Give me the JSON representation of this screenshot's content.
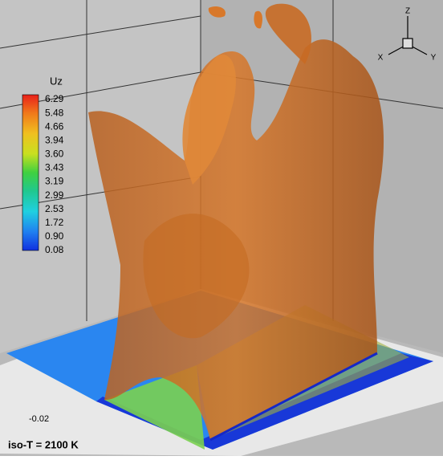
{
  "colorbar": {
    "title": "Uz",
    "labels": [
      "6.29",
      "5.48",
      "4.66",
      "3.94",
      "3.60",
      "3.43",
      "3.19",
      "2.99",
      "2.53",
      "1.72",
      "0.90",
      "0.08"
    ]
  },
  "axis": {
    "tick": "-0.02"
  },
  "triad": {
    "z": "Z",
    "x": "X",
    "y": "Y"
  },
  "annotation": "iso-T = 2100 K"
}
